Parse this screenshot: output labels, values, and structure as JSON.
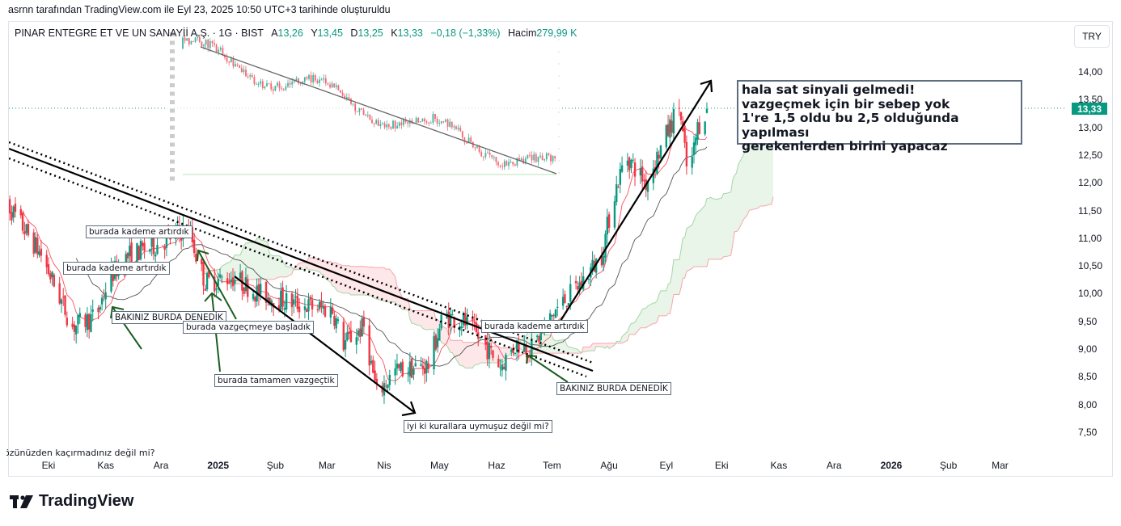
{
  "caption": "asrnn tarafından TradingView.com ile Eyl 23, 2025 10:50 UTC+3 tarihinde oluşturuldu",
  "header": {
    "symbol": "PINAR ENTEGRE ET VE UN SANAYİİ A.Ş. · 1G · BIST",
    "open_label": "A",
    "open": "13,26",
    "high_label": "Y",
    "high": "13,45",
    "low_label": "D",
    "low": "13,25",
    "close_label": "K",
    "close": "13,33",
    "change": "−0,18 (−1,33%)",
    "volume_label": "Hacim",
    "volume": "279,99 K"
  },
  "currency_button": "TRY",
  "last_price": "13,33",
  "colors": {
    "up": "#089981",
    "down": "#f23645",
    "accent": "#089981"
  },
  "annotations": {
    "big_note": [
      "hala sat sinyali gelmedi!",
      "vazgeçmek için bir sebep yok",
      "1're 1,5 oldu bu 2,5 olduğunda yapılması",
      "gerekenlerden birini yapacaz"
    ],
    "n1": "burada kademe artırdık",
    "n2": "burada kademe artırdık",
    "n3": "BAKINIZ BURDA DENEDİK",
    "n4": "burada vazgeçmeye başladık",
    "n5": "burada tamamen vazgeçtik",
    "n6": "iyi ki kurallara uymuşuz değil mi?",
    "n7": "burada kademe artırdık",
    "n8": "BAKINIZ BURDA DENEDİK",
    "cut": "gözünüzden kaçırmadınız değil mi?"
  },
  "logo_text": "TradingView",
  "chart_data": {
    "type": "candlestick",
    "title": "PINAR ENTEGRE ET VE UN SANAYİİ A.Ş. · 1G · BIST",
    "ylabel": "TRY",
    "ylim": [
      7.2,
      14.6
    ],
    "y_ticks": [
      "14,00",
      "13,50",
      "13,00",
      "12,50",
      "12,00",
      "11,50",
      "11,00",
      "10,50",
      "10,00",
      "9,50",
      "9,00",
      "8,50",
      "8,00",
      "7,50"
    ],
    "x_ticks": [
      {
        "label": "Eki",
        "date": "2024-10-01"
      },
      {
        "label": "Kas",
        "date": "2024-11-01"
      },
      {
        "label": "Ara",
        "date": "2024-12-01"
      },
      {
        "label": "2025",
        "date": "2025-01-01",
        "bold": true
      },
      {
        "label": "Şub",
        "date": "2025-02-01"
      },
      {
        "label": "Mar",
        "date": "2025-03-01"
      },
      {
        "label": "Nis",
        "date": "2025-04-01"
      },
      {
        "label": "May",
        "date": "2025-05-01"
      },
      {
        "label": "Haz",
        "date": "2025-06-01"
      },
      {
        "label": "Tem",
        "date": "2025-07-01"
      },
      {
        "label": "Ağu",
        "date": "2025-08-01"
      },
      {
        "label": "Eyl",
        "date": "2025-09-01"
      },
      {
        "label": "Eki",
        "date": "2025-10-01"
      },
      {
        "label": "Kas",
        "date": "2025-11-01"
      },
      {
        "label": "Ara",
        "date": "2025-12-01"
      },
      {
        "label": "2026",
        "date": "2026-01-01",
        "bold": true
      },
      {
        "label": "Şub",
        "date": "2026-02-01"
      },
      {
        "label": "Mar",
        "date": "2026-03-01"
      }
    ],
    "approx_close_path": [
      [
        "2024-09-10",
        11.55
      ],
      [
        "2024-09-27",
        10.7
      ],
      [
        "2024-10-14",
        9.4
      ],
      [
        "2024-10-27",
        9.6
      ],
      [
        "2024-11-03",
        10.3
      ],
      [
        "2024-11-14",
        10.7
      ],
      [
        "2024-11-30",
        10.9
      ],
      [
        "2024-12-16",
        11.2
      ],
      [
        "2024-12-20",
        10.7
      ],
      [
        "2024-12-25",
        10.2
      ],
      [
        "2025-01-09",
        10.3
      ],
      [
        "2025-01-23",
        10.0
      ],
      [
        "2025-02-14",
        9.8
      ],
      [
        "2025-03-04",
        9.7
      ],
      [
        "2025-03-10",
        9.1
      ],
      [
        "2025-03-21",
        9.4
      ],
      [
        "2025-03-28",
        8.2
      ],
      [
        "2025-04-07",
        8.6
      ],
      [
        "2025-04-25",
        8.7
      ],
      [
        "2025-05-03",
        9.6
      ],
      [
        "2025-05-14",
        9.5
      ],
      [
        "2025-05-25",
        9.1
      ],
      [
        "2025-06-03",
        8.7
      ],
      [
        "2025-06-12",
        9.1
      ],
      [
        "2025-06-20",
        9.0
      ],
      [
        "2025-07-03",
        9.7
      ],
      [
        "2025-07-17",
        10.2
      ],
      [
        "2025-07-28",
        10.7
      ],
      [
        "2025-08-03",
        11.7
      ],
      [
        "2025-08-10",
        12.5
      ],
      [
        "2025-08-21",
        12.0
      ],
      [
        "2025-08-30",
        12.7
      ],
      [
        "2025-09-08",
        13.4
      ],
      [
        "2025-09-13",
        12.0
      ],
      [
        "2025-09-18",
        13.0
      ],
      [
        "2025-09-23",
        13.33
      ]
    ],
    "indicators": [
      "Ichimoku Cloud",
      "Moving Average (fast, red)",
      "Moving Average (slow, gray)"
    ]
  }
}
